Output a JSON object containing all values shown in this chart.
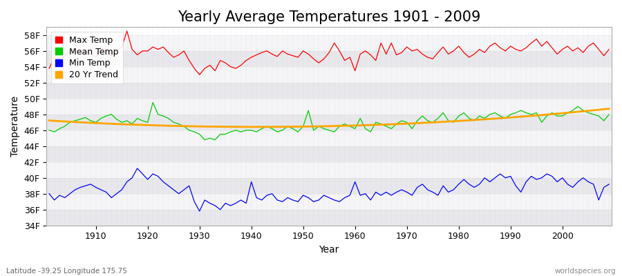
{
  "title": "Yearly Average Temperatures 1901 - 2009",
  "xlabel": "Year",
  "ylabel": "Temperature",
  "lat_lon_text": "Latitude -39.25 Longitude 175.75",
  "credit_text": "worldspecies.org",
  "years": [
    1901,
    1902,
    1903,
    1904,
    1905,
    1906,
    1907,
    1908,
    1909,
    1910,
    1911,
    1912,
    1913,
    1914,
    1915,
    1916,
    1917,
    1918,
    1919,
    1920,
    1921,
    1922,
    1923,
    1924,
    1925,
    1926,
    1927,
    1928,
    1929,
    1930,
    1931,
    1932,
    1933,
    1934,
    1935,
    1936,
    1937,
    1938,
    1939,
    1940,
    1941,
    1942,
    1943,
    1944,
    1945,
    1946,
    1947,
    1948,
    1949,
    1950,
    1951,
    1952,
    1953,
    1954,
    1955,
    1956,
    1957,
    1958,
    1959,
    1960,
    1961,
    1962,
    1963,
    1964,
    1965,
    1966,
    1967,
    1968,
    1969,
    1970,
    1971,
    1972,
    1973,
    1974,
    1975,
    1976,
    1977,
    1978,
    1979,
    1980,
    1981,
    1982,
    1983,
    1984,
    1985,
    1986,
    1987,
    1988,
    1989,
    1990,
    1991,
    1992,
    1993,
    1994,
    1995,
    1996,
    1997,
    1998,
    1999,
    2000,
    2001,
    2002,
    2003,
    2004,
    2005,
    2006,
    2007,
    2008,
    2009
  ],
  "max_temp": [
    53.8,
    55.2,
    55.0,
    55.4,
    56.0,
    56.2,
    55.8,
    56.0,
    55.6,
    55.2,
    56.5,
    56.0,
    55.4,
    56.0,
    56.5,
    58.5,
    56.2,
    55.5,
    56.0,
    56.0,
    56.5,
    56.2,
    56.5,
    55.8,
    55.2,
    55.5,
    56.0,
    54.8,
    53.8,
    53.0,
    53.8,
    54.2,
    53.5,
    54.8,
    54.5,
    54.0,
    53.8,
    54.2,
    54.8,
    55.2,
    55.5,
    55.8,
    56.0,
    55.6,
    55.3,
    56.0,
    55.6,
    55.4,
    55.2,
    56.0,
    55.6,
    55.0,
    54.5,
    55.0,
    55.8,
    57.0,
    56.0,
    54.8,
    55.2,
    53.5,
    55.6,
    56.0,
    55.5,
    54.8,
    57.0,
    55.6,
    57.0,
    55.5,
    55.8,
    56.5,
    56.0,
    56.2,
    55.6,
    55.2,
    55.0,
    55.8,
    56.5,
    55.6,
    56.0,
    56.6,
    55.8,
    55.2,
    55.6,
    56.2,
    55.8,
    56.6,
    57.0,
    56.4,
    56.0,
    56.6,
    56.2,
    56.0,
    56.4,
    57.0,
    57.5,
    56.6,
    57.2,
    56.4,
    55.6,
    56.2,
    56.6,
    56.0,
    56.4,
    55.8,
    56.6,
    57.0,
    56.2,
    55.4,
    56.2
  ],
  "mean_temp": [
    46.0,
    45.8,
    46.2,
    46.5,
    47.0,
    47.2,
    47.4,
    47.6,
    47.2,
    47.0,
    47.5,
    47.8,
    48.0,
    47.4,
    47.0,
    47.2,
    46.8,
    47.5,
    47.2,
    47.0,
    49.5,
    48.0,
    47.8,
    47.5,
    47.0,
    46.8,
    46.5,
    46.0,
    45.8,
    45.5,
    44.8,
    45.0,
    44.8,
    45.5,
    45.5,
    45.8,
    46.0,
    45.8,
    46.0,
    46.0,
    45.8,
    46.2,
    46.5,
    46.2,
    45.8,
    46.0,
    46.5,
    46.2,
    45.8,
    46.5,
    48.5,
    46.0,
    46.5,
    46.2,
    46.0,
    45.8,
    46.5,
    46.8,
    46.5,
    46.2,
    47.5,
    46.2,
    45.8,
    47.0,
    46.8,
    46.5,
    46.2,
    46.8,
    47.2,
    47.0,
    46.2,
    47.2,
    47.8,
    47.2,
    47.0,
    47.5,
    48.2,
    47.2,
    47.0,
    47.8,
    48.2,
    47.5,
    47.2,
    47.8,
    47.5,
    48.0,
    48.2,
    47.8,
    47.5,
    48.0,
    48.2,
    48.5,
    48.2,
    48.0,
    48.2,
    47.0,
    47.8,
    48.2,
    47.8,
    47.8,
    48.2,
    48.5,
    49.0,
    48.5,
    48.2,
    48.0,
    47.8,
    47.2,
    48.0
  ],
  "min_temp": [
    38.0,
    37.2,
    37.8,
    37.5,
    38.0,
    38.5,
    38.8,
    39.0,
    39.2,
    38.8,
    38.5,
    38.2,
    37.5,
    38.0,
    38.5,
    39.5,
    40.0,
    41.2,
    40.5,
    39.8,
    40.5,
    40.2,
    39.5,
    39.0,
    38.5,
    38.0,
    38.5,
    39.0,
    37.0,
    35.8,
    37.2,
    36.8,
    36.5,
    36.0,
    36.8,
    36.5,
    36.8,
    37.2,
    36.8,
    39.5,
    37.5,
    37.2,
    37.8,
    38.0,
    37.2,
    37.0,
    37.5,
    37.2,
    37.0,
    37.8,
    37.5,
    37.0,
    37.2,
    37.8,
    37.5,
    37.2,
    37.0,
    37.5,
    37.8,
    39.5,
    37.8,
    38.0,
    37.2,
    38.2,
    37.8,
    38.2,
    37.8,
    38.2,
    38.5,
    38.2,
    37.8,
    38.8,
    39.2,
    38.5,
    38.2,
    37.8,
    39.0,
    38.2,
    38.5,
    39.2,
    39.8,
    39.2,
    38.8,
    39.2,
    40.0,
    39.5,
    40.0,
    40.5,
    40.0,
    40.2,
    39.0,
    38.2,
    39.5,
    40.2,
    39.8,
    40.0,
    40.5,
    40.2,
    39.5,
    40.0,
    39.2,
    38.8,
    39.5,
    40.0,
    39.5,
    39.2,
    37.2,
    38.8,
    39.2
  ],
  "background_color": "#ffffff",
  "plot_bg_color": "#ffffff",
  "band_color_light": "#e8e8ec",
  "band_color_white": "#f5f5f8",
  "max_color": "#ff0000",
  "mean_color": "#00cc00",
  "min_color": "#0000ff",
  "trend_color": "#ffa500",
  "ylim": [
    34,
    59
  ],
  "yticks": [
    34,
    36,
    38,
    40,
    42,
    44,
    46,
    48,
    50,
    52,
    54,
    56,
    58
  ],
  "grid_color": "#cccccc",
  "title_fontsize": 15,
  "axis_label_fontsize": 10,
  "tick_fontsize": 9,
  "legend_fontsize": 9
}
